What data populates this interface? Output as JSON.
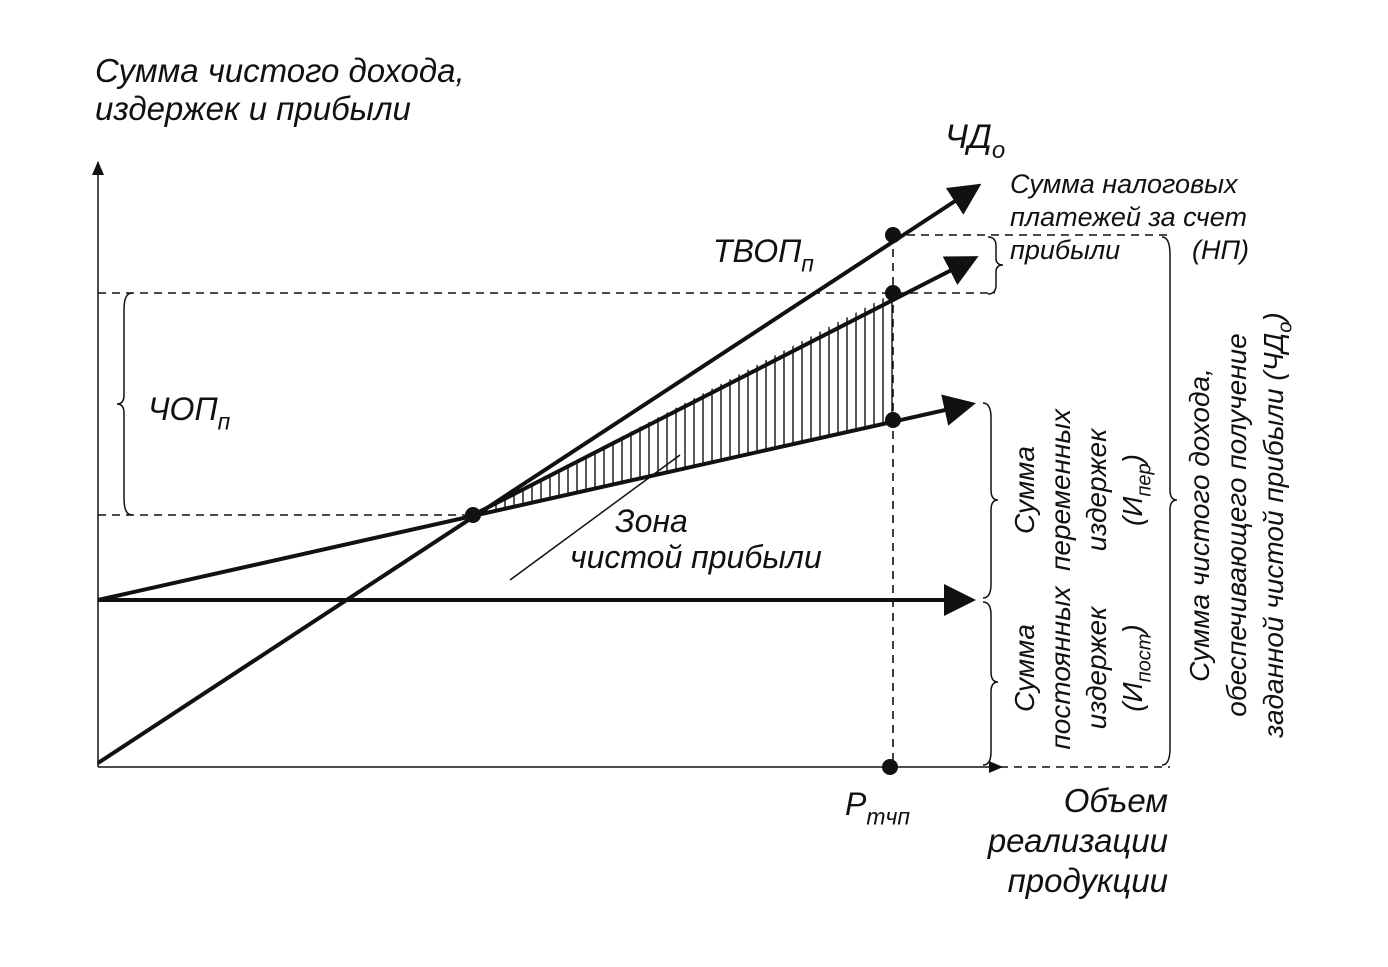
{
  "labels": [
    {
      "lines": [
        [
          "Сумма чистого дохода,"
        ],
        [
          "издержек и прибыли"
        ]
      ]
    },
    {
      "lines": [
        [
          "ЧД",
          "о"
        ]
      ]
    },
    {
      "lines": [
        [
          "ТВОП",
          "п"
        ]
      ]
    },
    {
      "lines": [
        [
          "ЧОП",
          "п"
        ]
      ]
    },
    {
      "lines": [
        [
          "Сумма налоговых"
        ],
        [
          "платежей за счет"
        ],
        [
          "прибыли"
        ]
      ]
    },
    {
      "lines": [
        [
          "(НП)"
        ]
      ]
    },
    {
      "lines": [
        [
          "Зона"
        ],
        [
          "чистой прибыли"
        ]
      ]
    },
    {
      "lines": [
        [
          "P",
          "тчп"
        ]
      ]
    },
    {
      "lines": [
        [
          "Объем"
        ],
        [
          "реализации"
        ],
        [
          "продукции"
        ]
      ]
    },
    {
      "lines": [
        [
          "Сумма"
        ],
        [
          "переменных"
        ],
        [
          "издержек"
        ],
        [
          "(И",
          "пер",
          ")"
        ]
      ]
    },
    {
      "lines": [
        [
          "Сумма"
        ],
        [
          "постоянных"
        ],
        [
          "издержек"
        ],
        [
          "(И",
          "пост",
          ")"
        ]
      ]
    },
    {
      "lines": [
        [
          "Сумма чистого дохода,"
        ],
        [
          "обеспечивающего получение"
        ],
        [
          "заданной чистой прибыли (ЧД",
          "о",
          ")"
        ]
      ]
    }
  ]
}
